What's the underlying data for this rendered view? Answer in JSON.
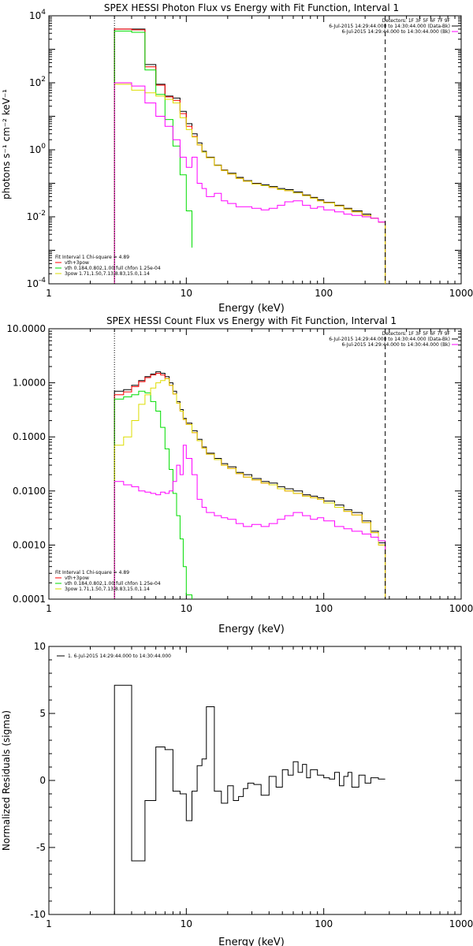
{
  "chart_data": [
    {
      "type": "line",
      "step": true,
      "title": "SPEX HESSI Photon Flux vs Energy with Fit Function, Interval 1",
      "xlabel": "Energy (keV)",
      "ylabel": "photons s⁻¹ cm⁻² keV⁻¹",
      "xscale": "log",
      "yscale": "log",
      "xlim": [
        1,
        1000
      ],
      "ylim": [
        0.0001,
        10000
      ],
      "xticklabels": [
        "1",
        "10",
        "100",
        "1000"
      ],
      "yticklabels": [
        "10⁻⁴",
        "10⁻²",
        "10⁰",
        "10²",
        "10⁴"
      ],
      "vlines": [
        {
          "x": 3,
          "style": "dotted"
        },
        {
          "x": 280,
          "style": "dashed"
        }
      ],
      "header": [
        "Detectors: 1F 3F 5F 6F 7F 9F",
        "6-Jul-2015 14:29:44.000 to 14:30:44.000 (Data-Bk)",
        "6-Jul-2015 14:29:44.000 to 14:30:44.000 (Bk)"
      ],
      "header_colors": [
        "#000000",
        "#ff00ff"
      ],
      "legend": [
        "Fit Interval 1    Chi-square = 4.89",
        "vth+3pow",
        "vth 0.184,0.802,1.00  full chfon 1.25e-04",
        "3pow 1.71,1.50,7.13,8.83,15.0,1.14"
      ],
      "legend_colors": [
        "#ff0000",
        "#00dd00",
        "#dddd00"
      ],
      "series": [
        {
          "name": "6-Jul-2015 14:29:44.000 to 14:30:44.000 (Data-Bk)",
          "color": "#000000",
          "x": [
            3,
            4,
            5,
            6,
            7,
            8,
            9,
            10,
            11,
            12,
            13,
            14,
            16,
            18,
            20,
            23,
            26,
            30,
            35,
            40,
            46,
            52,
            60,
            70,
            80,
            90,
            100,
            120,
            140,
            160,
            190,
            220,
            250,
            280
          ],
          "y": [
            4000,
            4000,
            350,
            90,
            40,
            35,
            14,
            6,
            3,
            1.6,
            0.9,
            0.6,
            0.35,
            0.25,
            0.2,
            0.15,
            0.12,
            0.1,
            0.09,
            0.08,
            0.07,
            0.065,
            0.055,
            0.045,
            0.038,
            0.032,
            0.027,
            0.022,
            0.018,
            0.015,
            0.012,
            0.009,
            0.007,
            0.0001
          ]
        },
        {
          "name": "vth+3pow",
          "color": "#ff0000",
          "x": [
            3,
            4,
            5,
            6,
            7,
            8,
            9,
            10,
            11,
            12,
            13,
            14,
            16,
            18,
            20,
            23,
            26,
            30,
            35,
            40,
            46,
            52,
            60,
            70,
            80,
            90,
            100,
            120,
            140,
            160,
            190,
            220,
            250,
            280
          ],
          "y": [
            4000,
            3800,
            300,
            85,
            38,
            30,
            12,
            5,
            2.5,
            1.4,
            0.85,
            0.58,
            0.34,
            0.24,
            0.19,
            0.14,
            0.115,
            0.095,
            0.085,
            0.075,
            0.065,
            0.06,
            0.052,
            0.043,
            0.036,
            0.03,
            0.026,
            0.021,
            0.017,
            0.014,
            0.011,
            0.009,
            0.007,
            0.0001
          ]
        },
        {
          "name": "vth",
          "color": "#00dd00",
          "x": [
            3,
            4,
            5,
            6,
            7,
            8,
            9,
            10,
            11
          ],
          "y": [
            3500,
            3200,
            240,
            45,
            8,
            1.3,
            0.18,
            0.015,
            0.0012
          ]
        },
        {
          "name": "3pow",
          "color": "#dddd00",
          "x": [
            3,
            4,
            5,
            6,
            7,
            8,
            9,
            10,
            11,
            12,
            13,
            14,
            16,
            18,
            20,
            23,
            26,
            30,
            35,
            40,
            46,
            52,
            60,
            70,
            80,
            90,
            100,
            120,
            140,
            160,
            190,
            220,
            250,
            280
          ],
          "y": [
            90,
            60,
            50,
            40,
            32,
            25,
            9,
            4,
            2.4,
            1.4,
            0.85,
            0.58,
            0.34,
            0.24,
            0.19,
            0.14,
            0.115,
            0.095,
            0.085,
            0.075,
            0.065,
            0.06,
            0.052,
            0.043,
            0.036,
            0.03,
            0.026,
            0.021,
            0.017,
            0.014,
            0.011,
            0.009,
            0.007,
            0.0001
          ]
        },
        {
          "name": "6-Jul-2015 14:29:44.000 to 14:30:44.000 (Bk)",
          "color": "#ff00ff",
          "x": [
            3,
            4,
            5,
            6,
            7,
            8,
            9,
            10,
            11,
            12,
            13,
            14,
            16,
            18,
            20,
            23,
            26,
            30,
            35,
            40,
            46,
            52,
            60,
            70,
            80,
            90,
            100,
            120,
            140,
            160,
            190,
            220,
            250,
            280
          ],
          "y": [
            100,
            80,
            25,
            10,
            5,
            2,
            0.6,
            0.3,
            0.6,
            0.1,
            0.07,
            0.04,
            0.05,
            0.03,
            0.025,
            0.02,
            0.02,
            0.018,
            0.016,
            0.018,
            0.022,
            0.028,
            0.03,
            0.022,
            0.018,
            0.02,
            0.016,
            0.014,
            0.012,
            0.011,
            0.01,
            0.009,
            0.007,
            0.006
          ]
        }
      ]
    },
    {
      "type": "line",
      "step": true,
      "title": "SPEX HESSI Count Flux vs Energy with Fit Function, Interval 1",
      "xlabel": "Energy (keV)",
      "ylabel": "",
      "xscale": "log",
      "yscale": "log",
      "xlim": [
        1,
        1000
      ],
      "ylim": [
        0.0001,
        10
      ],
      "xticklabels": [
        "1",
        "10",
        "100",
        "1000"
      ],
      "yticklabels": [
        "0.0001",
        "0.0010",
        "0.0100",
        "0.1000",
        "1.0000",
        "10.0000"
      ],
      "vlines": [
        {
          "x": 3,
          "style": "dotted"
        },
        {
          "x": 280,
          "style": "dashed"
        }
      ],
      "header": [
        "Detectors: 1F 3F 5F 6F 7F 9F",
        "6-Jul-2015 14:29:44.000 to 14:30:44.000 (Data-Bk)",
        "6-Jul-2015 14:29:44.000 to 14:30:44.000 (Bk)"
      ],
      "header_colors": [
        "#000000",
        "#ff00ff"
      ],
      "legend": [
        "Fit Interval 1    Chi-square = 4.89",
        "vth+3pow",
        "vth 0.184,0.802,1.00  full chfon 1.25e-04",
        "3pow 1.71,1.50,7.13,8.83,15.0,1.14"
      ],
      "legend_colors": [
        "#ff0000",
        "#00dd00",
        "#dddd00"
      ],
      "series": [
        {
          "name": "6-Jul-2015 14:29:44.000 to 14:30:44.000 (Data-Bk)",
          "color": "#000000",
          "x": [
            3,
            3.5,
            4,
            4.5,
            5,
            5.5,
            6,
            6.5,
            7,
            7.5,
            8,
            8.5,
            9,
            9.5,
            10,
            11,
            12,
            13,
            14,
            16,
            18,
            20,
            23,
            26,
            30,
            35,
            40,
            46,
            52,
            60,
            70,
            80,
            90,
            100,
            120,
            140,
            160,
            190,
            220,
            250,
            280
          ],
          "y": [
            0.7,
            0.75,
            0.9,
            1.1,
            1.3,
            1.45,
            1.6,
            1.5,
            1.3,
            1.0,
            0.7,
            0.45,
            0.32,
            0.22,
            0.18,
            0.13,
            0.09,
            0.065,
            0.05,
            0.04,
            0.032,
            0.028,
            0.022,
            0.02,
            0.017,
            0.015,
            0.014,
            0.012,
            0.011,
            0.01,
            0.0085,
            0.008,
            0.0075,
            0.0065,
            0.0055,
            0.0045,
            0.004,
            0.0028,
            0.0018,
            0.0011,
            0.0001
          ]
        },
        {
          "name": "vth+3pow",
          "color": "#ff0000",
          "x": [
            3,
            3.5,
            4,
            4.5,
            5,
            5.5,
            6,
            6.5,
            7,
            7.5,
            8,
            8.5,
            9,
            9.5,
            10,
            11,
            12,
            13,
            14,
            16,
            18,
            20,
            23,
            26,
            30,
            35,
            40,
            46,
            52,
            60,
            70,
            80,
            90,
            100,
            120,
            140,
            160,
            190,
            220,
            250,
            280
          ],
          "y": [
            0.6,
            0.68,
            0.85,
            1.05,
            1.25,
            1.4,
            1.5,
            1.4,
            1.2,
            0.9,
            0.62,
            0.42,
            0.3,
            0.21,
            0.17,
            0.12,
            0.085,
            0.062,
            0.048,
            0.038,
            0.03,
            0.026,
            0.021,
            0.018,
            0.016,
            0.014,
            0.013,
            0.011,
            0.01,
            0.009,
            0.008,
            0.0075,
            0.007,
            0.006,
            0.005,
            0.0042,
            0.0036,
            0.0026,
            0.0017,
            0.001,
            0.0001
          ]
        },
        {
          "name": "vth",
          "color": "#00dd00",
          "x": [
            3,
            3.5,
            4,
            4.5,
            5,
            5.5,
            6,
            6.5,
            7,
            7.5,
            8,
            8.5,
            9,
            9.5,
            10,
            11
          ],
          "y": [
            0.5,
            0.55,
            0.6,
            0.7,
            0.65,
            0.45,
            0.3,
            0.15,
            0.06,
            0.025,
            0.009,
            0.0035,
            0.0013,
            0.0004,
            0.00012,
            0.0001
          ]
        },
        {
          "name": "3pow",
          "color": "#dddd00",
          "x": [
            3,
            3.5,
            4,
            4.5,
            5,
            5.5,
            6,
            6.5,
            7,
            7.5,
            8,
            8.5,
            9,
            9.5,
            10,
            11,
            12,
            13,
            14,
            16,
            18,
            20,
            23,
            26,
            30,
            35,
            40,
            46,
            52,
            60,
            70,
            80,
            90,
            100,
            120,
            140,
            160,
            190,
            220,
            250,
            280
          ],
          "y": [
            0.07,
            0.1,
            0.2,
            0.4,
            0.6,
            0.8,
            1.0,
            1.1,
            1.2,
            0.9,
            0.62,
            0.42,
            0.3,
            0.21,
            0.17,
            0.12,
            0.085,
            0.062,
            0.048,
            0.038,
            0.03,
            0.026,
            0.021,
            0.018,
            0.016,
            0.014,
            0.013,
            0.011,
            0.01,
            0.009,
            0.008,
            0.0075,
            0.007,
            0.006,
            0.005,
            0.0042,
            0.0036,
            0.0026,
            0.0017,
            0.001,
            0.0001
          ]
        },
        {
          "name": "6-Jul-2015 14:29:44.000 to 14:30:44.000 (Bk)",
          "color": "#ff00ff",
          "x": [
            3,
            3.5,
            4,
            4.5,
            5,
            5.5,
            6,
            6.5,
            7,
            7.5,
            8,
            8.5,
            9,
            9.5,
            10,
            11,
            12,
            13,
            14,
            16,
            18,
            20,
            23,
            26,
            30,
            35,
            40,
            46,
            52,
            60,
            70,
            80,
            90,
            100,
            120,
            140,
            160,
            190,
            220,
            250,
            280
          ],
          "y": [
            0.015,
            0.013,
            0.012,
            0.01,
            0.0095,
            0.009,
            0.0085,
            0.0095,
            0.009,
            0.01,
            0.015,
            0.03,
            0.02,
            0.07,
            0.04,
            0.02,
            0.007,
            0.005,
            0.004,
            0.0035,
            0.0032,
            0.003,
            0.0025,
            0.0022,
            0.0024,
            0.0022,
            0.0025,
            0.003,
            0.0035,
            0.004,
            0.0035,
            0.003,
            0.0032,
            0.0028,
            0.0022,
            0.002,
            0.0018,
            0.0016,
            0.0014,
            0.0012,
            0.0008
          ]
        }
      ]
    },
    {
      "type": "line",
      "step": true,
      "title": "",
      "xlabel": "Energy (keV)",
      "ylabel": "Normalized Residuals (sigma)",
      "xscale": "log",
      "yscale": "linear",
      "xlim": [
        1,
        1000
      ],
      "ylim": [
        -10,
        10
      ],
      "xticklabels": [
        "1",
        "10",
        "100",
        "1000"
      ],
      "yticklabels": [
        "-10",
        "-5",
        "0",
        "5",
        "10"
      ],
      "legend": [
        "1.  6-Jul-2015 14:29:44.000 to 14:30:44.000"
      ],
      "legend_colors": [
        "#000000"
      ],
      "series": [
        {
          "name": "1.  6-Jul-2015 14:29:44.000 to 14:30:44.000",
          "color": "#000000",
          "x": [
            3,
            4,
            5,
            6,
            7,
            8,
            9,
            10,
            11,
            12,
            13,
            14,
            16,
            18,
            20,
            22,
            24,
            26,
            28,
            31,
            35,
            40,
            45,
            50,
            55,
            60,
            65,
            70,
            75,
            80,
            90,
            100,
            110,
            120,
            130,
            140,
            150,
            160,
            180,
            200,
            220,
            250,
            280
          ],
          "y": [
            7.1,
            -6,
            -1.5,
            2.5,
            2.3,
            -0.8,
            -1,
            -3,
            -0.8,
            1.1,
            1.6,
            5.5,
            -0.8,
            -1.7,
            -0.4,
            -1.5,
            -1.2,
            -0.6,
            -0.2,
            -0.3,
            -1.1,
            0.3,
            -0.5,
            0.8,
            0.4,
            1.4,
            0.6,
            1.2,
            0.2,
            0.8,
            0.4,
            0.2,
            0.1,
            0.6,
            -0.4,
            0.3,
            0.6,
            -0.5,
            0.4,
            -0.2,
            0.2,
            0.1,
            0.1
          ]
        }
      ]
    }
  ]
}
